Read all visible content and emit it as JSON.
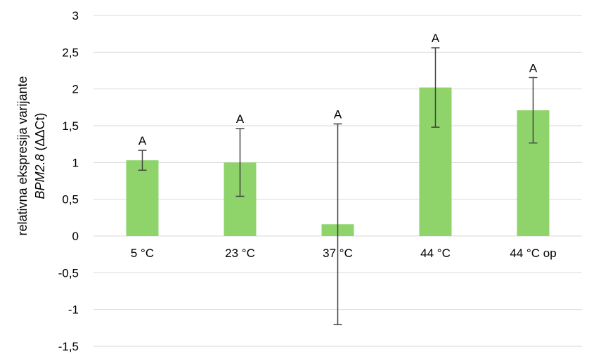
{
  "chart_data": {
    "type": "bar",
    "categories": [
      "5 °C",
      "23 °C",
      "37 °C",
      "44 °C",
      "44 °C op"
    ],
    "values": [
      1.03,
      1.0,
      0.16,
      2.02,
      1.71
    ],
    "errors": [
      0.135,
      0.46,
      1.365,
      0.54,
      0.445
    ],
    "significance": [
      "A",
      "A",
      "A",
      "A",
      "A"
    ],
    "ylabel_line1": "relativna ekspresija varijante",
    "ylabel_line2_italic": "BPM2.8",
    "ylabel_line2_rest": " (ΔΔCt)",
    "ylim": [
      -1.5,
      3
    ],
    "yticks": [
      3,
      2.5,
      2,
      1.5,
      1,
      0.5,
      0,
      -0.5,
      -1,
      -1.5
    ],
    "ytick_labels": [
      "3",
      "2,5",
      "2",
      "1,5",
      "1",
      "0,5",
      "0",
      "-0,5",
      "-1",
      "-1,5"
    ],
    "grid": true,
    "legend": "none",
    "colors": {
      "bar": "#8ed46b",
      "error": "#404040",
      "grid": "#d9d9d9"
    }
  }
}
